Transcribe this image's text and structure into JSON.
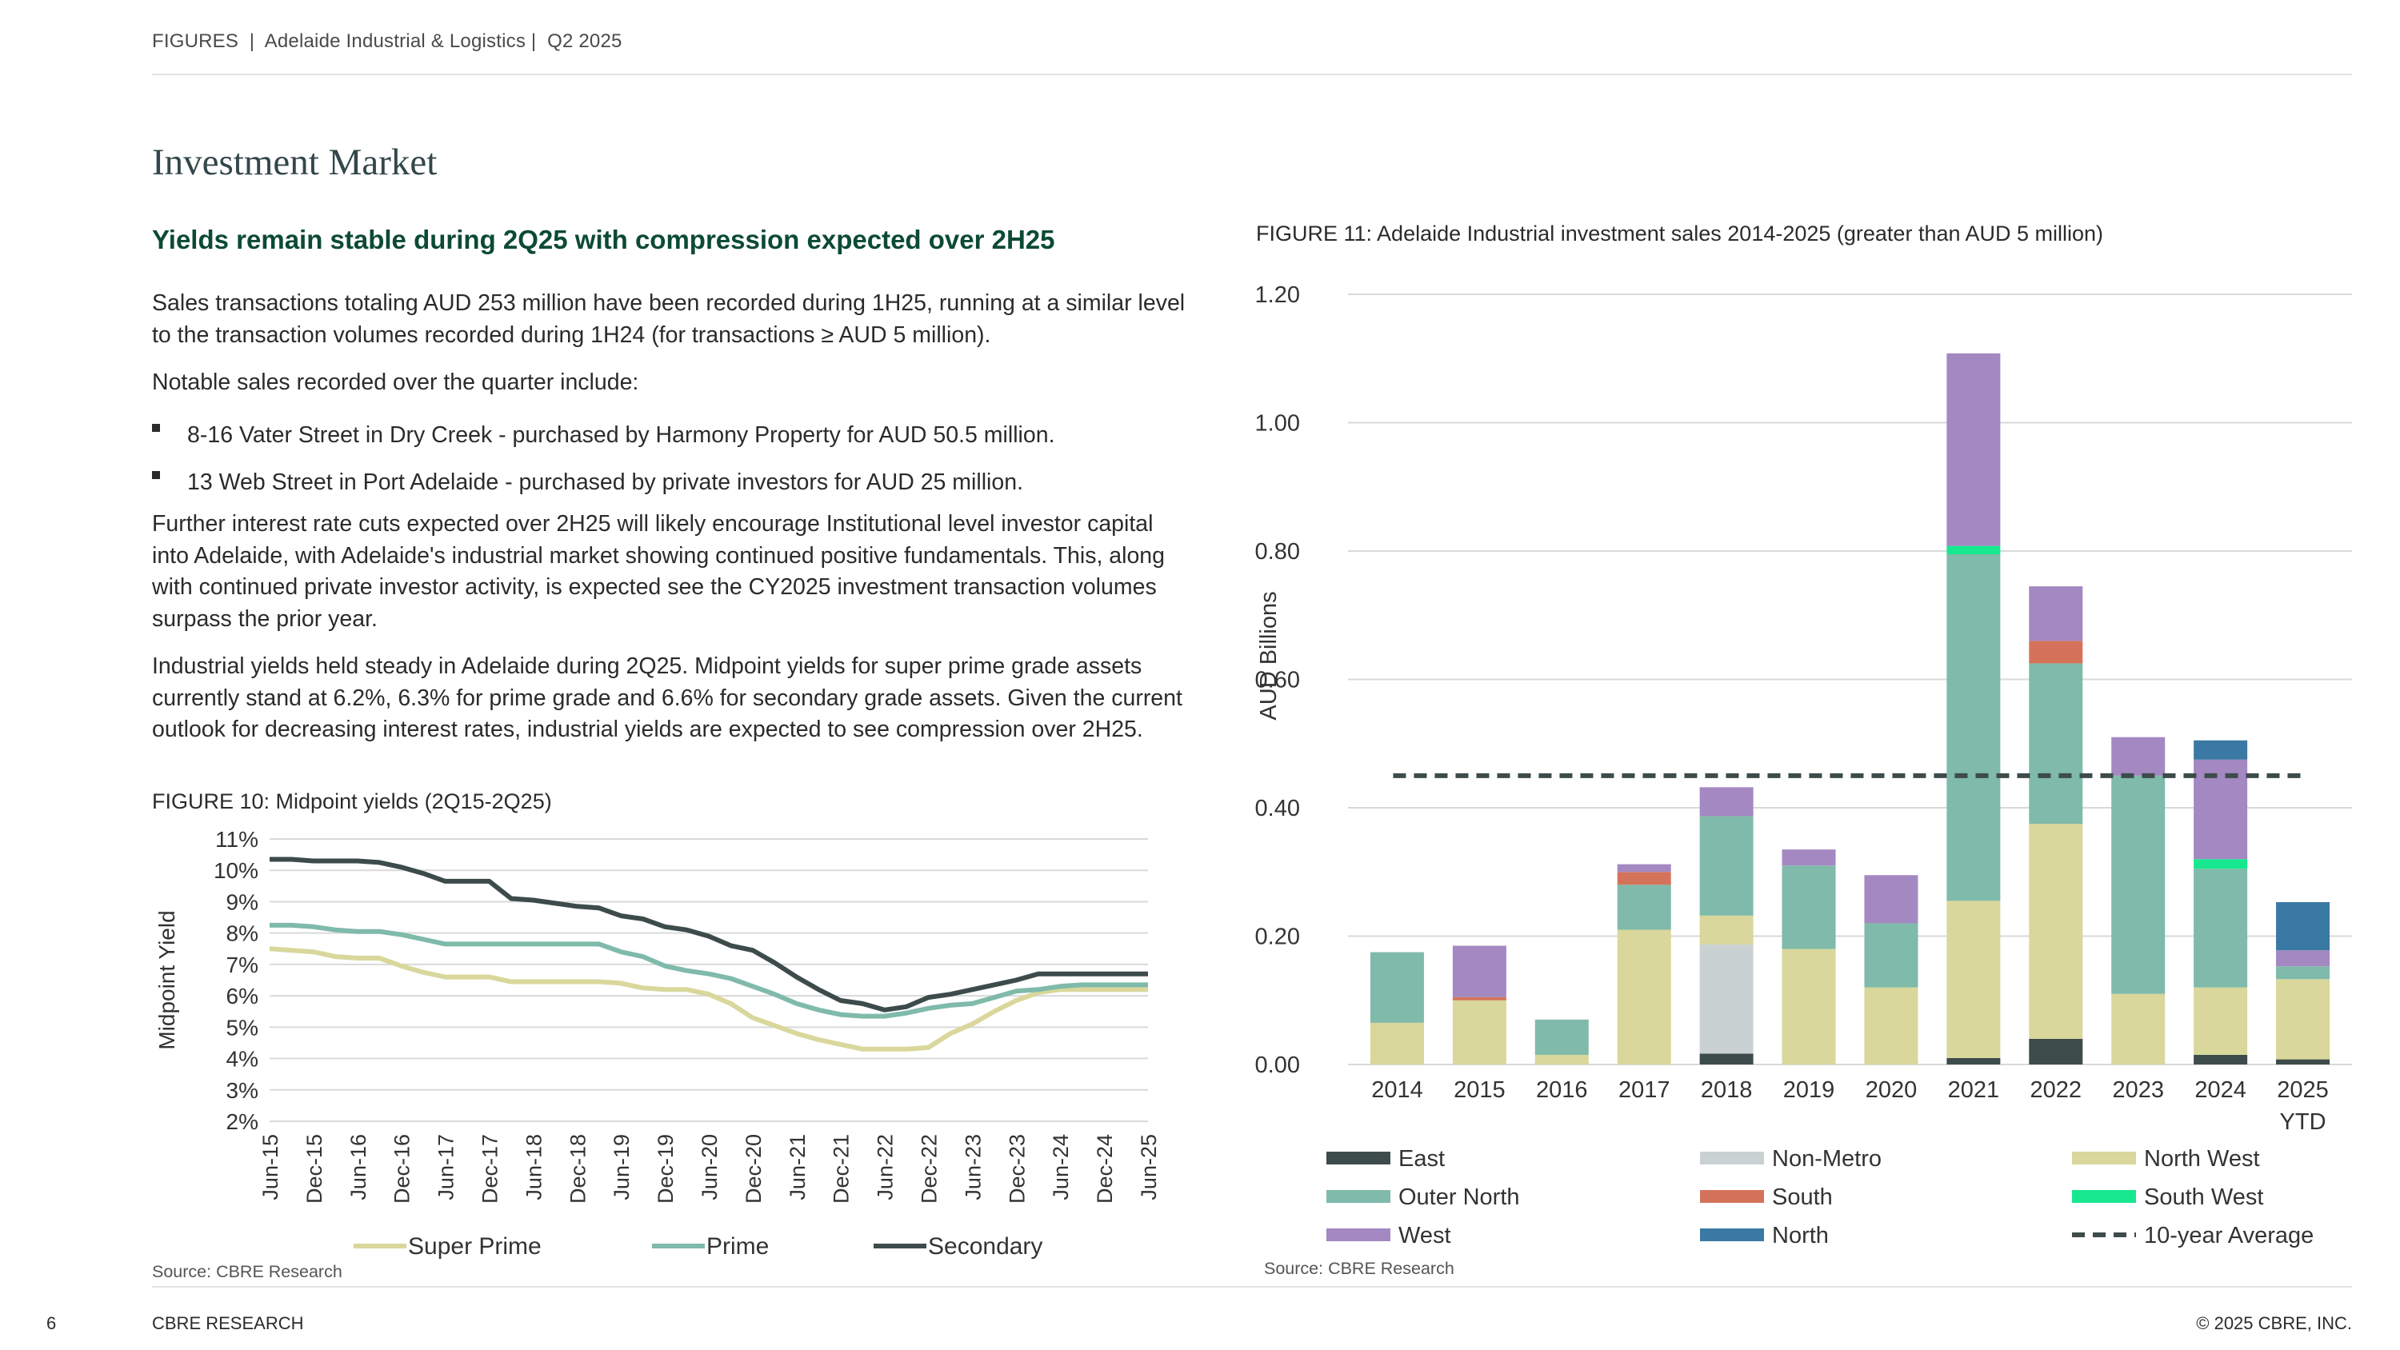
{
  "header": {
    "text": "FIGURES  |  Adelaide Industrial & Logistics |  Q2 2025"
  },
  "section_title": "Investment Market",
  "subheading": "Yields remain stable during 2Q25 with compression expected over 2H25",
  "paragraphs": {
    "p1": "Sales transactions totaling AUD 253 million have been recorded during 1H25, running at a similar level to the transaction volumes recorded during 1H24 (for transactions ≥ AUD 5 million).",
    "p2": "Notable sales recorded over the quarter include:",
    "bullets": [
      "8-16 Vater Street in Dry Creek - purchased by Harmony Property for AUD 50.5 million.",
      "13 Web Street in Port Adelaide - purchased by private investors for AUD 25 million."
    ],
    "p3": "Further interest rate cuts expected over 2H25 will likely encourage Institutional level investor capital into Adelaide, with Adelaide's industrial market showing continued positive fundamentals. This, along with continued private investor activity, is expected see the CY2025 investment transaction volumes surpass the prior year.",
    "p4": "Industrial yields held steady in Adelaide during 2Q25. Midpoint yields for super prime grade assets currently stand at 6.2%, 6.3% for prime grade and 6.6% for secondary grade assets. Given the current outlook for decreasing interest rates, industrial yields are expected to see compression over 2H25."
  },
  "figure10": {
    "caption": "FIGURE 10: Midpoint yields (2Q15-2Q25)",
    "source": "Source: CBRE Research"
  },
  "figure11": {
    "caption": "FIGURE 11: Adelaide Industrial investment sales 2014-2025 (greater than AUD 5 million)",
    "source": "Source: CBRE Research"
  },
  "footer": {
    "page_number": "6",
    "left": "CBRE RESEARCH",
    "right": "© 2025 CBRE, INC."
  },
  "chart_data": [
    {
      "type": "line",
      "title": "FIGURE 10: Midpoint yields (2Q15-2Q25)",
      "ylabel": "Midpoint Yield",
      "xlabel": "",
      "ylim": [
        2,
        11
      ],
      "ytick_labels": [
        "2%",
        "3%",
        "4%",
        "5%",
        "6%",
        "7%",
        "8%",
        "9%",
        "10%",
        "11%"
      ],
      "grid": true,
      "legend": "bottom",
      "x": [
        "Jun-15",
        "Sep-15",
        "Dec-15",
        "Mar-16",
        "Jun-16",
        "Sep-16",
        "Dec-16",
        "Mar-17",
        "Jun-17",
        "Sep-17",
        "Dec-17",
        "Mar-18",
        "Jun-18",
        "Sep-18",
        "Dec-18",
        "Mar-19",
        "Jun-19",
        "Sep-19",
        "Dec-19",
        "Mar-20",
        "Jun-20",
        "Sep-20",
        "Dec-20",
        "Mar-21",
        "Jun-21",
        "Sep-21",
        "Dec-21",
        "Mar-22",
        "Jun-22",
        "Sep-22",
        "Dec-22",
        "Mar-23",
        "Jun-23",
        "Sep-23",
        "Dec-23",
        "Mar-24",
        "Jun-24",
        "Sep-24",
        "Dec-24",
        "Mar-25",
        "Jun-25"
      ],
      "xtick_labels": [
        "Jun-15",
        "Dec-15",
        "Jun-16",
        "Dec-16",
        "Jun-17",
        "Dec-17",
        "Jun-18",
        "Dec-18",
        "Jun-19",
        "Dec-19",
        "Jun-20",
        "Dec-20",
        "Jun-21",
        "Dec-21",
        "Jun-22",
        "Dec-22",
        "Jun-23",
        "Dec-23",
        "Jun-24",
        "Dec-24",
        "Jun-25"
      ],
      "series": [
        {
          "name": "Super Prime",
          "color": "#d9d79b",
          "values": [
            7.5,
            7.45,
            7.4,
            7.25,
            7.2,
            7.2,
            6.95,
            6.75,
            6.6,
            6.6,
            6.6,
            6.45,
            6.45,
            6.45,
            6.45,
            6.45,
            6.4,
            6.25,
            6.2,
            6.2,
            6.05,
            5.75,
            5.3,
            5.05,
            4.8,
            4.6,
            4.45,
            4.3,
            4.3,
            4.3,
            4.35,
            4.8,
            5.1,
            5.5,
            5.85,
            6.1,
            6.2,
            6.2,
            6.2,
            6.2,
            6.2
          ]
        },
        {
          "name": "Prime",
          "color": "#7fbaaa",
          "values": [
            8.25,
            8.25,
            8.2,
            8.1,
            8.05,
            8.05,
            7.95,
            7.8,
            7.65,
            7.65,
            7.65,
            7.65,
            7.65,
            7.65,
            7.65,
            7.65,
            7.4,
            7.25,
            6.95,
            6.8,
            6.7,
            6.55,
            6.3,
            6.05,
            5.75,
            5.55,
            5.4,
            5.35,
            5.35,
            5.45,
            5.6,
            5.7,
            5.75,
            5.95,
            6.15,
            6.2,
            6.3,
            6.35,
            6.35,
            6.35,
            6.35
          ]
        },
        {
          "name": "Secondary",
          "color": "#3d4b4b",
          "values": [
            10.35,
            10.35,
            10.3,
            10.3,
            10.3,
            10.25,
            10.1,
            9.9,
            9.65,
            9.65,
            9.65,
            9.1,
            9.05,
            8.95,
            8.85,
            8.8,
            8.55,
            8.45,
            8.2,
            8.1,
            7.9,
            7.6,
            7.45,
            7.05,
            6.6,
            6.2,
            5.85,
            5.75,
            5.55,
            5.65,
            5.95,
            6.05,
            6.2,
            6.35,
            6.5,
            6.7,
            6.7,
            6.7,
            6.7,
            6.7,
            6.7
          ]
        }
      ]
    },
    {
      "type": "bar",
      "stacked": true,
      "title": "FIGURE 11: Adelaide Industrial investment sales 2014-2025 (greater than AUD 5 million)",
      "ylabel": "AUD Billions",
      "xlabel": "",
      "ylim": [
        0,
        1.2
      ],
      "ytick_labels": [
        "0.00",
        "0.20",
        "0.40",
        "0.60",
        "0.80",
        "1.00",
        "1.20"
      ],
      "grid": true,
      "legend": "bottom",
      "categories": [
        "2014",
        "2015",
        "2016",
        "2017",
        "2018",
        "2019",
        "2020",
        "2021",
        "2022",
        "2023",
        "2024",
        "2025 YTD"
      ],
      "series": [
        {
          "name": "East",
          "color": "#3d4b4b",
          "values": [
            0,
            0,
            0,
            0,
            0.017,
            0,
            0,
            0.01,
            0.04,
            0,
            0.015,
            0.008
          ]
        },
        {
          "name": "Non-Metro",
          "color": "#cad1d3",
          "values": [
            0,
            0,
            0,
            0,
            0.17,
            0,
            0,
            0,
            0,
            0,
            0,
            0
          ]
        },
        {
          "name": "North West",
          "color": "#d9d79b",
          "values": [
            0.065,
            0.1,
            0.015,
            0.21,
            0.045,
            0.18,
            0.12,
            0.245,
            0.335,
            0.11,
            0.105,
            0.125
          ]
        },
        {
          "name": "Outer North",
          "color": "#7fbaaa",
          "values": [
            0.11,
            0,
            0.055,
            0.07,
            0.155,
            0.13,
            0.1,
            0.54,
            0.25,
            0.34,
            0.185,
            0.02
          ]
        },
        {
          "name": "South",
          "color": "#d4735a",
          "values": [
            0,
            0.005,
            0,
            0.02,
            0,
            0,
            0,
            0,
            0.035,
            0,
            0,
            0
          ]
        },
        {
          "name": "South West",
          "color": "#17e88f",
          "values": [
            0,
            0,
            0,
            0,
            0,
            0,
            0,
            0.013,
            0,
            0,
            0.015,
            0
          ]
        },
        {
          "name": "West",
          "color": "#a388c1",
          "values": [
            0,
            0.08,
            0,
            0.012,
            0.045,
            0.025,
            0.075,
            0.3,
            0.085,
            0.06,
            0.155,
            0.025
          ]
        },
        {
          "name": "North",
          "color": "#3a79a3",
          "values": [
            0,
            0,
            0,
            0,
            0,
            0,
            0,
            0,
            0,
            0,
            0.03,
            0.075
          ]
        }
      ],
      "reference_line": {
        "name": "10-year Average",
        "value": 0.45,
        "color": "#3d4b4b",
        "style": "dashed"
      }
    }
  ]
}
